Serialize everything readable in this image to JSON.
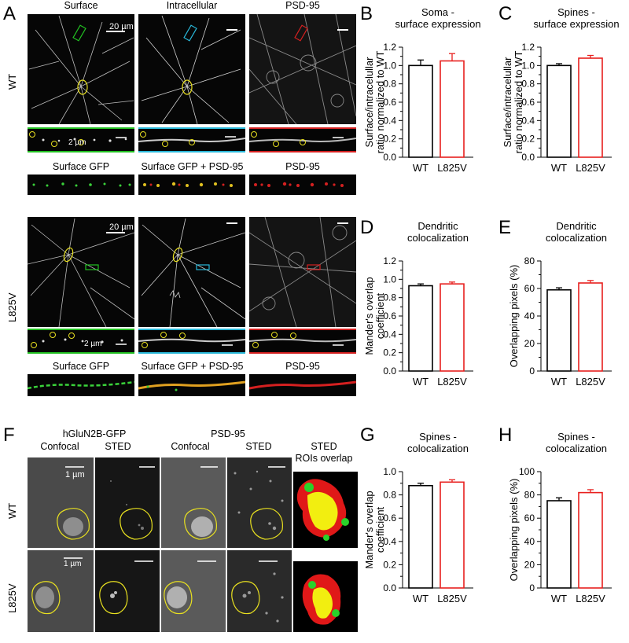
{
  "panels": {
    "A": "A",
    "B": "B",
    "C": "C",
    "D": "D",
    "E": "E",
    "F": "F",
    "G": "G",
    "H": "H"
  },
  "panelA": {
    "col_headers": [
      "Surface",
      "Intracellular",
      "PSD-95"
    ],
    "rows": [
      "WT",
      "L825V"
    ],
    "scale_big": "20 µm",
    "scale_small": "2 µm",
    "strip_headers": [
      "Surface GFP",
      "Surface GFP + PSD-95",
      "PSD-95"
    ]
  },
  "panelF": {
    "group_headers": [
      "hGluN2B-GFP",
      "PSD-95"
    ],
    "sub_headers": [
      "Confocal",
      "STED",
      "Confocal",
      "STED"
    ],
    "last_header_line1": "STED",
    "last_header_line2": "ROIs overlap",
    "rows": [
      "WT",
      "L825V"
    ],
    "scale": "1 µm"
  },
  "colors": {
    "wt": "#000000",
    "l825v": "#e8201e",
    "green_box": "#22c022",
    "cyan_box": "#29b7d8",
    "red_box": "#d42020",
    "roi": "#e8e020"
  },
  "chart_data": [
    {
      "id": "B",
      "type": "bar",
      "title": "Soma - surface expression",
      "ylabel": "Surface/intracelullar ratio normalized to WT",
      "categories": [
        "WT",
        "L825V"
      ],
      "values": [
        1.0,
        1.05
      ],
      "errors": [
        0.06,
        0.08
      ],
      "ylim": [
        0,
        1.2
      ],
      "yticks": [
        0.0,
        0.2,
        0.4,
        0.6,
        0.8,
        1.0,
        1.2
      ],
      "ytick_labels": [
        "0.0",
        "0.2",
        "0.4",
        "0.6",
        "0.8",
        "1.0",
        "1.2"
      ]
    },
    {
      "id": "C",
      "type": "bar",
      "title": "Spines - surface expression",
      "ylabel": "Surface/intracelullar ratio normalized to WT",
      "categories": [
        "WT",
        "L825V"
      ],
      "values": [
        1.0,
        1.08
      ],
      "errors": [
        0.02,
        0.03
      ],
      "ylim": [
        0,
        1.2
      ],
      "yticks": [
        0.0,
        0.2,
        0.4,
        0.6,
        0.8,
        1.0,
        1.2
      ],
      "ytick_labels": [
        "0.0",
        "0.2",
        "0.4",
        "0.6",
        "0.8",
        "1.0",
        "1.2"
      ]
    },
    {
      "id": "D",
      "type": "bar",
      "title": "Dendritic colocalization",
      "ylabel": "Mander's overlap coefficient",
      "categories": [
        "WT",
        "L825V"
      ],
      "values": [
        0.93,
        0.95
      ],
      "errors": [
        0.02,
        0.02
      ],
      "ylim": [
        0,
        1.2
      ],
      "yticks": [
        0.0,
        0.2,
        0.4,
        0.6,
        0.8,
        1.0,
        1.2
      ],
      "ytick_labels": [
        "0.0",
        "0.2",
        "0.4",
        "0.6",
        "0.8",
        "1.0",
        "1.2"
      ]
    },
    {
      "id": "E",
      "type": "bar",
      "title": "Dendritic colocalization",
      "ylabel": "Overlapping pixels (%)",
      "categories": [
        "WT",
        "L825V"
      ],
      "values": [
        59,
        64
      ],
      "errors": [
        1.5,
        1.8
      ],
      "ylim": [
        0,
        80
      ],
      "yticks": [
        0,
        20,
        40,
        60,
        80
      ],
      "ytick_labels": [
        "0",
        "20",
        "40",
        "60",
        "80"
      ]
    },
    {
      "id": "G",
      "type": "bar",
      "title": "Spines - colocalization",
      "ylabel": "Mander's overlap coefficient",
      "categories": [
        "WT",
        "L825V"
      ],
      "values": [
        0.88,
        0.91
      ],
      "errors": [
        0.02,
        0.02
      ],
      "ylim": [
        0,
        1.0
      ],
      "yticks": [
        0.0,
        0.2,
        0.4,
        0.6,
        0.8,
        1.0
      ],
      "ytick_labels": [
        "0.0",
        "0.2",
        "0.4",
        "0.6",
        "0.8",
        "1.0"
      ]
    },
    {
      "id": "H",
      "type": "bar",
      "title": "Spines - colocalization",
      "ylabel": "Overlapping pixels (%)",
      "categories": [
        "WT",
        "L825V"
      ],
      "values": [
        75,
        82
      ],
      "errors": [
        2.5,
        2.5
      ],
      "ylim": [
        0,
        100
      ],
      "yticks": [
        0,
        20,
        40,
        60,
        80,
        100
      ],
      "ytick_labels": [
        "0",
        "20",
        "40",
        "60",
        "80",
        "100"
      ]
    }
  ]
}
